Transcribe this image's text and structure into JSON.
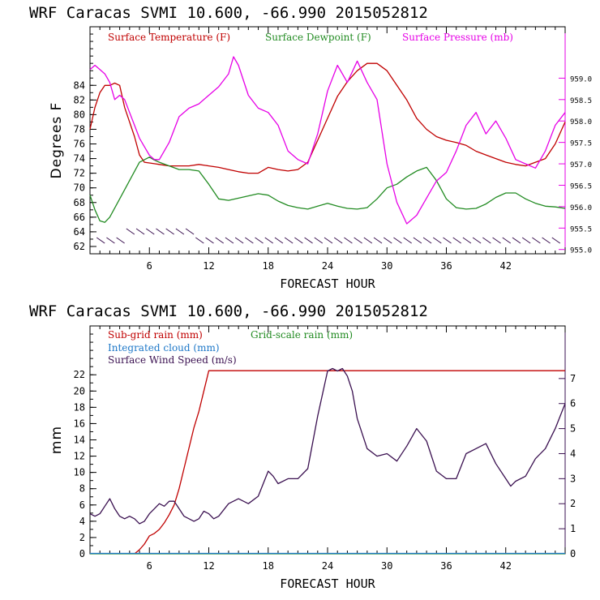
{
  "chart_data": [
    {
      "type": "line",
      "title": "WRF   Caracas SVMI  10.600, -66.990  2015052812",
      "xlabel": "FORECAST HOUR",
      "ylabel": "Degrees F",
      "xlim": [
        0,
        48
      ],
      "ylim": [
        61,
        92
      ],
      "y2lim": [
        954.9,
        960.2
      ],
      "xticks": [
        "6",
        "12",
        "18",
        "24",
        "30",
        "36",
        "42"
      ],
      "yticks": [
        "62",
        "64",
        "66",
        "68",
        "70",
        "72",
        "74",
        "76",
        "78",
        "80",
        "82",
        "84"
      ],
      "y2ticks": [
        "955.0",
        "955.5",
        "956.0",
        "956.5",
        "957.0",
        "957.5",
        "958.0",
        "958.5",
        "959.0"
      ],
      "series": [
        {
          "name": "Surface Temperature (F)",
          "color": "#c00000",
          "axis": "left",
          "x": [
            0,
            0.5,
            1,
            1.5,
            2,
            2.5,
            3,
            3.5,
            4,
            4.5,
            5,
            5.5,
            6,
            6.5,
            7,
            8,
            9,
            10,
            11,
            12,
            13,
            14,
            15,
            16,
            17,
            18,
            19,
            20,
            21,
            22,
            23,
            24,
            25,
            26,
            27,
            28,
            29,
            30,
            31,
            32,
            33,
            34,
            35,
            36,
            37,
            38,
            39,
            40,
            41,
            42,
            43,
            44,
            45,
            46,
            47,
            48
          ],
          "y": [
            78,
            81,
            83,
            84,
            84,
            84.3,
            84,
            81,
            79,
            77,
            74.5,
            73.5,
            73.4,
            73.3,
            73.2,
            73,
            73,
            73,
            73.2,
            73,
            72.8,
            72.5,
            72.2,
            72,
            72,
            72.8,
            72.5,
            72.3,
            72.5,
            73.5,
            76.5,
            79.5,
            82.5,
            84.5,
            86,
            87,
            87,
            86,
            84,
            82,
            79.5,
            78,
            77,
            76.5,
            76.2,
            75.8,
            75,
            74.5,
            74,
            73.5,
            73.2,
            73,
            73.5,
            74,
            76,
            79
          ]
        },
        {
          "name": "Surface Dewpoint (F)",
          "color": "#228b22",
          "axis": "left",
          "x": [
            0,
            0.5,
            1,
            1.5,
            2,
            3,
            4,
            5,
            6,
            6.5,
            7,
            8,
            9,
            10,
            11,
            12,
            13,
            14,
            15,
            16,
            17,
            18,
            19,
            20,
            21,
            22,
            23,
            24,
            25,
            26,
            27,
            28,
            29,
            30,
            31,
            32,
            33,
            34,
            35,
            36,
            37,
            38,
            39,
            40,
            41,
            42,
            43,
            44,
            45,
            46,
            47,
            48
          ],
          "y": [
            69,
            67,
            65.5,
            65.3,
            66,
            68.5,
            71,
            73.5,
            74.2,
            73.8,
            73.5,
            73,
            72.5,
            72.5,
            72.3,
            70.5,
            68.5,
            68.3,
            68.6,
            68.9,
            69.2,
            69,
            68.2,
            67.6,
            67.3,
            67.1,
            67.5,
            67.9,
            67.5,
            67.2,
            67.1,
            67.3,
            68.5,
            70,
            70.5,
            71.5,
            72.3,
            72.8,
            71,
            68.5,
            67.3,
            67.1,
            67.2,
            67.8,
            68.7,
            69.3,
            69.3,
            68.5,
            67.9,
            67.5,
            67.4,
            67.2
          ]
        },
        {
          "name": "Surface Pressure (mb)",
          "color": "#e600e6",
          "axis": "right",
          "x": [
            0,
            0.5,
            1,
            1.5,
            2,
            2.5,
            3,
            3.5,
            4,
            4.5,
            5,
            5.5,
            6,
            6.5,
            7,
            8,
            9,
            10,
            11,
            12,
            13,
            14,
            14.5,
            15,
            16,
            17,
            18,
            19,
            20,
            21,
            22,
            23,
            24,
            25,
            26,
            27,
            28,
            29,
            30,
            31,
            32,
            33,
            34,
            35,
            36,
            37,
            38,
            39,
            40,
            41,
            42,
            43,
            44,
            45,
            46,
            47,
            48
          ],
          "y": [
            959.2,
            959.3,
            959.2,
            959.1,
            958.9,
            958.5,
            958.6,
            958.5,
            958.2,
            957.9,
            957.6,
            957.4,
            957.2,
            957.1,
            957.1,
            957.5,
            958.1,
            958.3,
            958.4,
            958.6,
            958.8,
            959.1,
            959.5,
            959.3,
            958.6,
            958.3,
            958.2,
            957.9,
            957.3,
            957.1,
            957,
            957.7,
            958.7,
            959.3,
            958.9,
            959.4,
            958.9,
            958.5,
            957,
            956.1,
            955.6,
            955.8,
            956.2,
            956.6,
            956.8,
            957.3,
            957.9,
            958.2,
            957.7,
            958,
            957.6,
            957.1,
            957,
            956.9,
            957.3,
            957.9,
            958.2
          ]
        }
      ],
      "wind_barb_row": "wind barbs along bottom of panel"
    },
    {
      "type": "line",
      "title": "WRF   Caracas SVMI  10.600, -66.990  2015052812",
      "xlabel": "FORECAST HOUR",
      "ylabel": "mm",
      "xlim": [
        0,
        48
      ],
      "ylim": [
        0,
        28
      ],
      "y2lim": [
        0,
        9.1
      ],
      "xticks": [
        "6",
        "12",
        "18",
        "24",
        "30",
        "36",
        "42"
      ],
      "yticks": [
        "0",
        "2",
        "4",
        "6",
        "8",
        "10",
        "12",
        "14",
        "16",
        "18",
        "20",
        "22"
      ],
      "y2ticks": [
        "0",
        "1",
        "2",
        "3",
        "4",
        "5",
        "6",
        "7"
      ],
      "series": [
        {
          "name": "Sub-grid rain (mm)",
          "color": "#c00000",
          "axis": "left",
          "x": [
            4.5,
            5,
            5.5,
            6,
            6.5,
            7,
            7.5,
            8,
            8.5,
            9,
            9.5,
            10,
            10.5,
            11,
            11.5,
            12,
            48
          ],
          "y": [
            0,
            0.5,
            1.2,
            2.2,
            2.5,
            3,
            3.8,
            4.8,
            6,
            8,
            10.5,
            13,
            15.5,
            17.5,
            20,
            22.5,
            22.5
          ]
        },
        {
          "name": "Grid-scale rain (mm)",
          "color": "#228b22",
          "axis": "left",
          "x": [
            0,
            48
          ],
          "y": [
            0,
            0
          ]
        },
        {
          "name": "Integrated cloud (mm)",
          "color": "#1e78c8",
          "axis": "left",
          "x": [
            0,
            48
          ],
          "y": [
            0.05,
            0.05
          ]
        },
        {
          "name": "Surface Wind Speed (m/s)",
          "color": "#3a1050",
          "axis": "right",
          "x": [
            0,
            0.5,
            1,
            1.5,
            2,
            2.5,
            3,
            3.5,
            4,
            4.5,
            5,
            5.5,
            6,
            6.5,
            7,
            7.5,
            8,
            8.5,
            9,
            9.5,
            10,
            10.5,
            11,
            11.5,
            12,
            12.5,
            13,
            14,
            15,
            16,
            17,
            18,
            18.5,
            19,
            20,
            21,
            22,
            23,
            24,
            24.5,
            25,
            25.5,
            26,
            26.5,
            27,
            28,
            29,
            30,
            31,
            32,
            33,
            34,
            35,
            36,
            37,
            38,
            39,
            40,
            41,
            42,
            42.5,
            43,
            44,
            45,
            46,
            47,
            48
          ],
          "y": [
            1.6,
            1.5,
            1.6,
            1.9,
            2.2,
            1.8,
            1.5,
            1.4,
            1.5,
            1.4,
            1.2,
            1.3,
            1.6,
            1.8,
            2,
            1.9,
            2.1,
            2.1,
            1.8,
            1.5,
            1.4,
            1.3,
            1.4,
            1.7,
            1.6,
            1.4,
            1.5,
            2,
            2.2,
            2,
            2.3,
            3.3,
            3.1,
            2.8,
            3,
            3,
            3.4,
            5.5,
            7.3,
            7.4,
            7.3,
            7.4,
            7.1,
            6.5,
            5.4,
            4.2,
            3.9,
            4,
            3.7,
            4.3,
            5,
            4.5,
            3.3,
            3,
            3,
            4,
            4.2,
            4.4,
            3.6,
            3,
            2.7,
            2.9,
            3.1,
            3.8,
            4.2,
            5,
            6
          ]
        }
      ]
    }
  ]
}
